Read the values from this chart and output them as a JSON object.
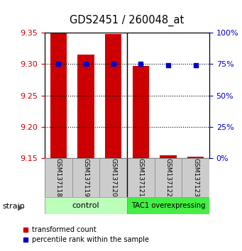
{
  "title": "GDS2451 / 260048_at",
  "samples": [
    "GSM137118",
    "GSM137119",
    "GSM137120",
    "GSM137121",
    "GSM137122",
    "GSM137123"
  ],
  "control_indices": [
    0,
    1,
    2
  ],
  "tac1_indices": [
    3,
    4,
    5
  ],
  "control_color": "#ccffcc",
  "tac1_color": "#44ee44",
  "transformed_counts": [
    9.355,
    9.315,
    9.348,
    9.297,
    9.155,
    9.152
  ],
  "percentile_ranks": [
    75,
    75,
    75,
    75,
    74,
    74
  ],
  "ylim": [
    9.15,
    9.35
  ],
  "yticks": [
    9.15,
    9.2,
    9.25,
    9.3,
    9.35
  ],
  "y2ticks": [
    0,
    25,
    50,
    75,
    100
  ],
  "y2lim": [
    0,
    100
  ],
  "bar_color": "#cc0000",
  "dot_color": "#0000cc",
  "bar_bottom": 9.15,
  "bar_width": 0.6,
  "ylabel_left_color": "#cc0000",
  "ylabel_right_color": "#0000cc",
  "legend_label_red": "transformed count",
  "legend_label_blue": "percentile rank within the sample",
  "strain_label": "strain"
}
